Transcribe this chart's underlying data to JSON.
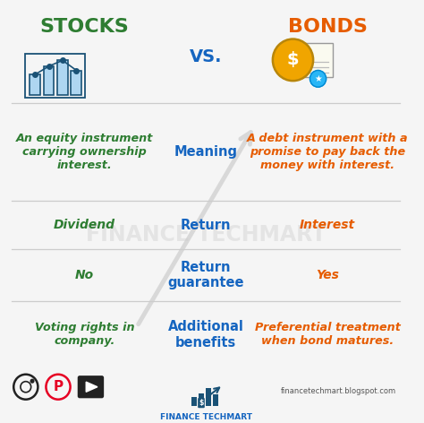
{
  "title_left": "STOCKS",
  "title_right": "BONDS",
  "vs_text": "VS.",
  "title_left_color": "#2e7d32",
  "title_right_color": "#e65c00",
  "vs_color": "#1565c0",
  "bg_color": "#f5f5f5",
  "rows": [
    {
      "left": "An equity instrument\ncarrying ownership\ninterest.",
      "center": "Meaning",
      "right": "A debt instrument with a\npromise to pay back the\nmoney with interest."
    },
    {
      "left": "Dividend",
      "center": "Return",
      "right": "Interest"
    },
    {
      "left": "No",
      "center": "Return\nguarantee",
      "right": "Yes"
    },
    {
      "left": "Voting rights in\ncompany.",
      "center": "Additional\nbenefits",
      "right": "Preferential treatment\nwhen bond matures."
    }
  ],
  "left_color": "#2e7d32",
  "center_color": "#1565c0",
  "right_color": "#e65c00",
  "watermark": "FINANCE TECHMART",
  "watermark_color": "#cccccc",
  "footer_logo": "FINANCE TECHMART",
  "footer_url": "financetechmart.blogspot.com",
  "footer_color": "#1565c0",
  "divider_color": "#cccccc",
  "row_hs": [
    0.235,
    0.115,
    0.125,
    0.16
  ]
}
